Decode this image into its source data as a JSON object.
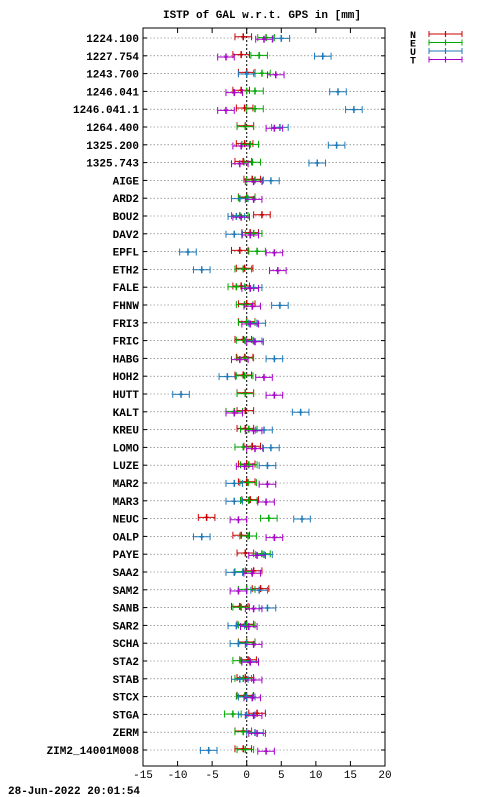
{
  "chart_data": {
    "type": "scatter",
    "title": "ISTP of GAL w.r.t. GPS in [mm]",
    "timestamp": "28-Jun-2022 20:01:54",
    "xlim": [
      -15,
      20
    ],
    "xticks": [
      -15,
      -10,
      -5,
      0,
      5,
      10,
      15,
      20
    ],
    "grid": "horizontal dotted per station",
    "legend_position": "top-right outside",
    "legend": [
      {
        "key": "N",
        "color": "#cc0000"
      },
      {
        "key": "E",
        "color": "#00aa00"
      },
      {
        "key": "U",
        "color": "#1f7ab8"
      },
      {
        "key": "T",
        "color": "#aa00cc"
      }
    ],
    "error_bar_half_width": 1.2,
    "stations": [
      {
        "name": "1224.100",
        "N": -0.5,
        "E": 2.8,
        "U": 5.0,
        "T": 2.5
      },
      {
        "name": "1227.754",
        "N": -0.8,
        "E": 1.8,
        "U": 11.0,
        "T": -3.0
      },
      {
        "name": "1243.700",
        "N": 0.0,
        "E": 2.2,
        "U": 0.0,
        "T": 4.2
      },
      {
        "name": "1246.041",
        "N": -0.8,
        "E": 1.2,
        "U": 13.2,
        "T": -1.8
      },
      {
        "name": "1246.041.1",
        "N": -0.3,
        "E": 1.2,
        "U": 15.5,
        "T": -3.0
      },
      {
        "name": "1264.400",
        "N": -0.2,
        "E": -0.2,
        "U": 4.8,
        "T": 4.0
      },
      {
        "name": "1325.200",
        "N": -0.3,
        "E": 0.5,
        "U": 13.0,
        "T": -0.8
      },
      {
        "name": "1325.743",
        "N": -0.5,
        "E": 0.8,
        "U": 10.2,
        "T": -1.0
      },
      {
        "name": "AIGE",
        "N": 0.8,
        "E": 1.2,
        "U": 3.5,
        "T": 1.0
      },
      {
        "name": "ARD2",
        "N": 0.0,
        "E": 0.0,
        "U": -1.0,
        "T": 1.0
      },
      {
        "name": "BOU2",
        "N": 2.2,
        "E": -1.0,
        "U": -1.5,
        "T": -0.8
      },
      {
        "name": "DAV2",
        "N": 0.5,
        "E": 1.0,
        "U": -1.8,
        "T": 0.5
      },
      {
        "name": "EPFL",
        "N": -1.0,
        "E": 1.5,
        "U": -8.5,
        "T": 4.0
      },
      {
        "name": "ETH2",
        "N": -0.3,
        "E": -0.5,
        "U": -6.5,
        "T": 4.5
      },
      {
        "name": "FALE",
        "N": -0.8,
        "E": -1.5,
        "U": 1.0,
        "T": 0.5
      },
      {
        "name": "FHNW",
        "N": 0.0,
        "E": -0.3,
        "U": 4.8,
        "T": 0.8
      },
      {
        "name": "FRI3",
        "N": 0.0,
        "E": 0.0,
        "U": 1.5,
        "T": 0.5
      },
      {
        "name": "FRIC",
        "N": -0.5,
        "E": -0.3,
        "U": 1.0,
        "T": 1.2
      },
      {
        "name": "HABG",
        "N": -0.3,
        "E": -0.2,
        "U": 4.0,
        "T": -1.0
      },
      {
        "name": "HOH2",
        "N": -0.5,
        "E": -0.3,
        "U": -2.8,
        "T": 2.5
      },
      {
        "name": "HUTT",
        "N": -0.2,
        "E": -0.2,
        "U": -9.5,
        "T": 4.0
      },
      {
        "name": "KALT",
        "N": -0.2,
        "E": -1.8,
        "U": 7.8,
        "T": -1.8
      },
      {
        "name": "KREU",
        "N": -0.2,
        "E": 0.3,
        "U": 2.5,
        "T": 1.0
      },
      {
        "name": "LOMO",
        "N": 0.8,
        "E": -0.5,
        "U": 3.5,
        "T": 1.2
      },
      {
        "name": "LUZE",
        "N": 0.0,
        "E": 0.3,
        "U": 3.0,
        "T": -0.3
      },
      {
        "name": "MAR2",
        "N": 0.0,
        "E": 0.2,
        "U": -1.8,
        "T": 3.0
      },
      {
        "name": "MAR3",
        "N": 0.5,
        "E": 0.3,
        "U": -1.8,
        "T": 2.8
      },
      {
        "name": "NEUC",
        "N": -5.8,
        "E": 3.2,
        "U": 8.0,
        "T": -1.2
      },
      {
        "name": "OALP",
        "N": -0.8,
        "E": 0.2,
        "U": -6.5,
        "T": 4.0
      },
      {
        "name": "PAYE",
        "N": -0.2,
        "E": 2.2,
        "U": 2.5,
        "T": 1.5
      },
      {
        "name": "SAA2",
        "N": 1.0,
        "E": -0.5,
        "U": -1.8,
        "T": 0.8
      },
      {
        "name": "SAM2",
        "N": 2.0,
        "E": 0.0,
        "U": 1.8,
        "T": -1.2
      },
      {
        "name": "SANB",
        "N": -1.0,
        "E": -0.8,
        "U": 3.0,
        "T": 1.0
      },
      {
        "name": "SAR2",
        "N": -0.2,
        "E": 0.0,
        "U": -1.5,
        "T": 0.3
      },
      {
        "name": "SCHA",
        "N": 0.0,
        "E": 0.0,
        "U": -1.2,
        "T": 1.0
      },
      {
        "name": "STA2",
        "N": 0.2,
        "E": -0.8,
        "U": 0.5,
        "T": 0.5
      },
      {
        "name": "STAB",
        "N": -0.2,
        "E": -0.5,
        "U": -1.0,
        "T": 1.0
      },
      {
        "name": "STCX",
        "N": -0.2,
        "E": -0.3,
        "U": 0.0,
        "T": 0.8
      },
      {
        "name": "STGA",
        "N": 1.5,
        "E": -2.0,
        "U": 0.0,
        "T": 1.0
      },
      {
        "name": "ZERM",
        "N": -0.5,
        "E": -0.5,
        "U": 1.2,
        "T": 1.5
      },
      {
        "name": "ZIM2_14001M008",
        "N": -0.5,
        "E": -0.2,
        "U": -5.5,
        "T": 2.8
      }
    ]
  }
}
